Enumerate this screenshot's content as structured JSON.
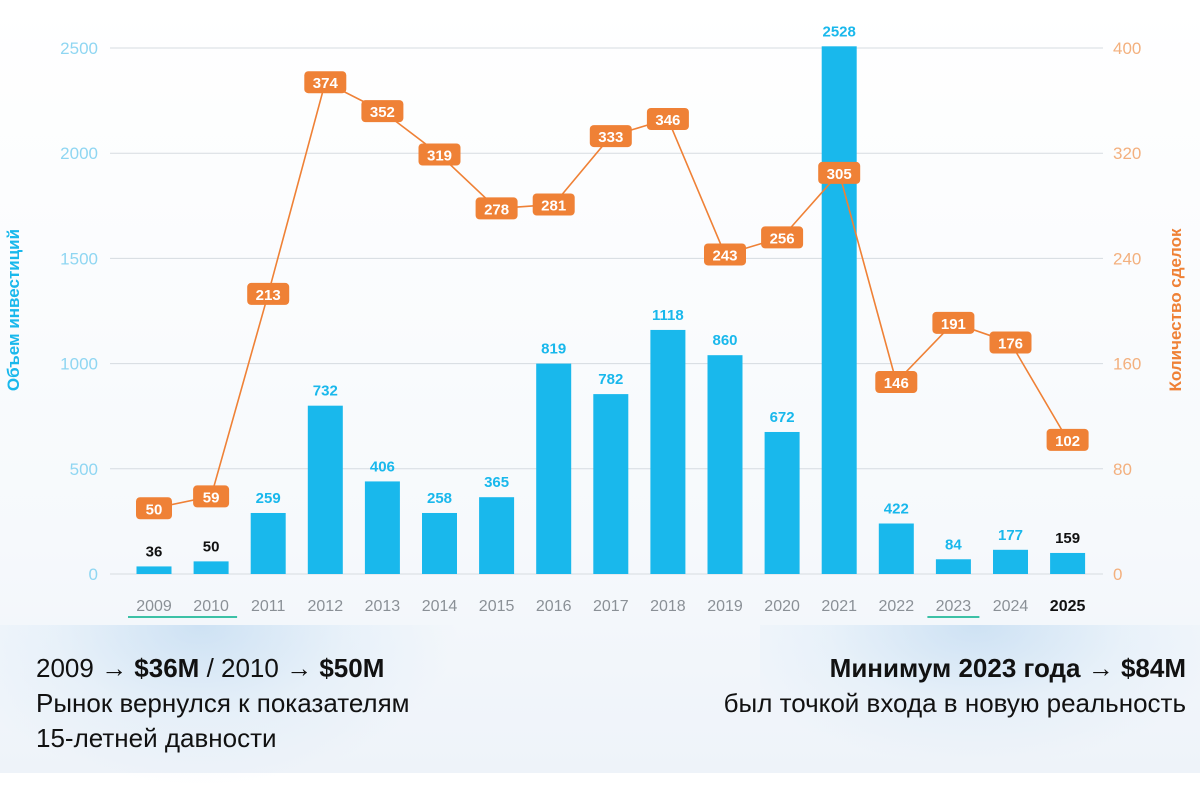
{
  "chart_data": {
    "type": "bar+line",
    "categories": [
      "2009",
      "2010",
      "2011",
      "2012",
      "2013",
      "2014",
      "2015",
      "2016",
      "2017",
      "2018",
      "2019",
      "2020",
      "2021",
      "2022",
      "2023",
      "2024",
      "2025"
    ],
    "series": [
      {
        "name": "Объем инвестиций",
        "type": "bar",
        "axis": "left",
        "color": "#19b8ec",
        "values": [
          36,
          50,
          259,
          732,
          406,
          258,
          365,
          819,
          782,
          1118,
          860,
          672,
          2528,
          422,
          84,
          177,
          159
        ],
        "plotted_heights": [
          36,
          60,
          290,
          800,
          440,
          290,
          365,
          1000,
          855,
          1160,
          1040,
          675,
          2508,
          240,
          70,
          115,
          100
        ]
      },
      {
        "name": "Количество сделок",
        "type": "line",
        "axis": "right",
        "color": "#ef8136",
        "values": [
          50,
          59,
          213,
          374,
          352,
          319,
          278,
          281,
          333,
          346,
          243,
          256,
          305,
          146,
          191,
          176,
          102
        ]
      }
    ],
    "ylabel": "Объем инвестиций",
    "ylabel_right": "Количество сделок",
    "ylim": [
      0,
      2500
    ],
    "ylim_right": [
      0,
      400
    ],
    "yticks": [
      "0",
      "500",
      "1000",
      "1500",
      "2000",
      "2500"
    ],
    "yticks_right": [
      "0",
      "80",
      "160",
      "240",
      "320",
      "400"
    ],
    "grid": true,
    "highlight_categories": [
      "2009",
      "2010",
      "2023"
    ],
    "bold_category": "2025",
    "dark_value_labels": [
      "2009",
      "2010",
      "2025"
    ]
  },
  "notes": {
    "left": {
      "line1_a": "2009 → ",
      "line1_b": "$36M",
      "line1_c": " / 2010 → ",
      "line1_d": "$50M",
      "line2": "Рынок вернулся к показателям",
      "line3": "15-летней давности"
    },
    "right": {
      "line1": "Минимум 2023 года → $84M",
      "line2": "был точкой входа в новую реальность"
    }
  }
}
